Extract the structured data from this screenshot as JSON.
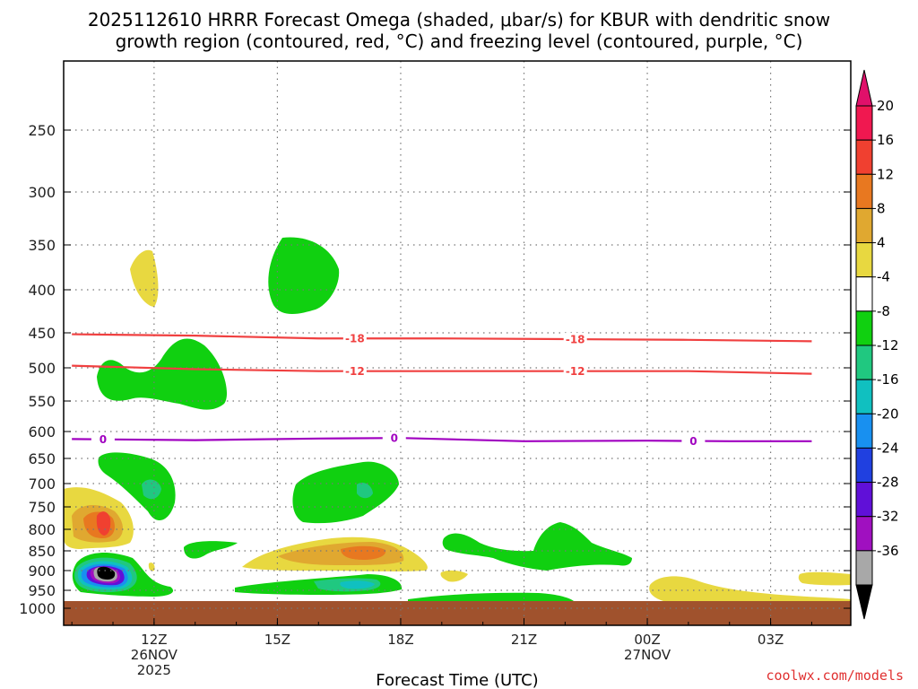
{
  "chart_data": {
    "type": "contour",
    "title_line1": "2025112610 HRRR Forecast Omega (shaded, μbar/s) for KBUR with dendritic snow",
    "title_line2": "growth region (contoured, red, °C) and freezing level (contoured, purple, °C)",
    "xlabel": "Forecast Time (UTC)",
    "x_ticks": [
      {
        "label": "12Z",
        "sub1": "26NOV",
        "sub2": "2025",
        "hour": 12
      },
      {
        "label": "15Z",
        "sub1": "",
        "sub2": "",
        "hour": 15
      },
      {
        "label": "18Z",
        "sub1": "",
        "sub2": "",
        "hour": 18
      },
      {
        "label": "21Z",
        "sub1": "",
        "sub2": "",
        "hour": 21
      },
      {
        "label": "00Z",
        "sub1": "27NOV",
        "sub2": "",
        "hour": 24
      },
      {
        "label": "03Z",
        "sub1": "",
        "sub2": "",
        "hour": 27
      }
    ],
    "y_ticks": [
      250,
      300,
      350,
      400,
      450,
      500,
      550,
      600,
      650,
      700,
      750,
      800,
      850,
      900,
      950,
      1000
    ],
    "colorbar": {
      "labels": [
        "20",
        "16",
        "12",
        "8",
        "4",
        "-4",
        "-8",
        "-12",
        "-16",
        "-20",
        "-24",
        "-28",
        "-32",
        "-36"
      ],
      "colors": [
        "#f01850",
        "#f04030",
        "#e87820",
        "#e0a830",
        "#e8d840",
        "#ffffff",
        "#10d010",
        "#20c880",
        "#10c0c0",
        "#1890f0",
        "#2040e0",
        "#6010d8",
        "#a010c0",
        "#a8a8a8"
      ],
      "top_color": "#e0106a",
      "bottom_color": "#000000"
    },
    "lines": [
      {
        "name": "-18",
        "color": "#f04040",
        "labels": [
          "-18",
          "-18"
        ],
        "points": [
          [
            10,
            452
          ],
          [
            13,
            454
          ],
          [
            16,
            458
          ],
          [
            19,
            458
          ],
          [
            22,
            459
          ],
          [
            25,
            460
          ],
          [
            28,
            462
          ]
        ]
      },
      {
        "name": "-12",
        "color": "#f04040",
        "labels": [
          "-12",
          "-12"
        ],
        "points": [
          [
            10,
            497
          ],
          [
            13,
            502
          ],
          [
            16,
            505
          ],
          [
            19,
            505
          ],
          [
            22,
            505
          ],
          [
            25,
            505
          ],
          [
            28,
            509
          ]
        ]
      },
      {
        "name": "0",
        "color": "#a000c0",
        "labels": [
          "0",
          "0",
          "0"
        ],
        "points": [
          [
            10,
            614
          ],
          [
            13,
            616
          ],
          [
            16,
            613
          ],
          [
            18,
            612
          ],
          [
            21,
            618
          ],
          [
            24,
            617
          ],
          [
            26,
            618
          ],
          [
            28,
            618
          ]
        ]
      }
    ],
    "ground": {
      "color": "#a0522d"
    },
    "credit": "coolwx.com/models"
  }
}
